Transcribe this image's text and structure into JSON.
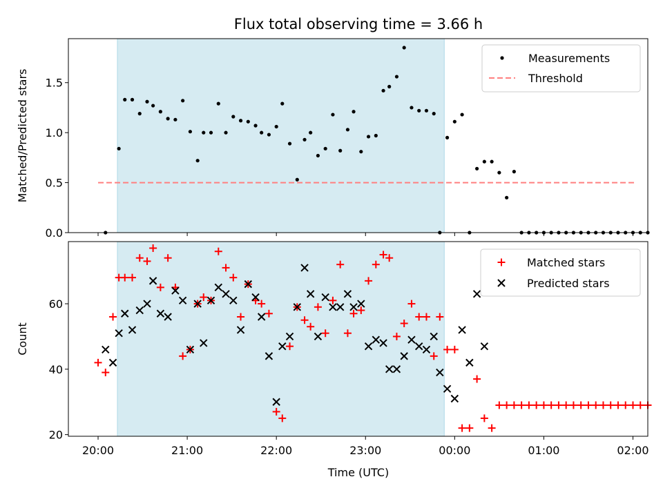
{
  "figure": {
    "title": "Flux total observing time = 3.66 h",
    "xlabel": "Time (UTC)"
  },
  "colors": {
    "measurements": "#000000",
    "threshold": "#ff7f7f",
    "matched": "#ff0000",
    "predicted": "#000000",
    "observing_window": "#add8e6"
  },
  "chart_data": [
    {
      "type": "scatter",
      "ylabel": "Matched/Predicted stars",
      "ylim": [
        0,
        1.94
      ],
      "yticks": [
        "0.0",
        "0.5",
        "1.0",
        "1.5"
      ],
      "yticks_values": [
        0,
        0.5,
        1.0,
        1.5
      ],
      "x_unit": "minutes since 00:00 UTC (negative = previous day)",
      "xlim": [
        -260,
        130
      ],
      "xticks": [
        "20:00",
        "21:00",
        "22:00",
        "23:00",
        "00:00",
        "01:00",
        "02:00"
      ],
      "xticks_values": [
        -240,
        -180,
        -120,
        -60,
        0,
        60,
        120
      ],
      "shaded_region": [
        -227,
        -7
      ],
      "legend": {
        "position": "top-right",
        "entries": [
          "Measurements",
          "Threshold"
        ]
      },
      "threshold": {
        "name": "Threshold",
        "y": 0.5,
        "x": [
          -240,
          122
        ]
      },
      "series": [
        {
          "name": "Measurements",
          "points": [
            [
              -235,
              0.0
            ],
            [
              -226,
              0.84
            ],
            [
              -222,
              1.33
            ],
            [
              -217,
              1.33
            ],
            [
              -212,
              1.19
            ],
            [
              -207,
              1.31
            ],
            [
              -203,
              1.27
            ],
            [
              -198,
              1.21
            ],
            [
              -193,
              1.14
            ],
            [
              -188,
              1.13
            ],
            [
              -183,
              1.32
            ],
            [
              -178,
              1.01
            ],
            [
              -173,
              0.72
            ],
            [
              -169,
              1.0
            ],
            [
              -164,
              1.0
            ],
            [
              -159,
              1.29
            ],
            [
              -154,
              1.0
            ],
            [
              -149,
              1.16
            ],
            [
              -144,
              1.12
            ],
            [
              -139,
              1.11
            ],
            [
              -134,
              1.07
            ],
            [
              -130,
              1.0
            ],
            [
              -125,
              0.98
            ],
            [
              -120,
              1.06
            ],
            [
              -116,
              1.29
            ],
            [
              -111,
              0.89
            ],
            [
              -106,
              0.53
            ],
            [
              -101,
              0.93
            ],
            [
              -97,
              1.0
            ],
            [
              -92,
              0.77
            ],
            [
              -87,
              0.84
            ],
            [
              -82,
              1.18
            ],
            [
              -77,
              0.82
            ],
            [
              -72,
              1.03
            ],
            [
              -68,
              1.21
            ],
            [
              -63,
              0.81
            ],
            [
              -58,
              0.96
            ],
            [
              -53,
              0.97
            ],
            [
              -48,
              1.42
            ],
            [
              -44,
              1.46
            ],
            [
              -39,
              1.56
            ],
            [
              -34,
              1.85
            ],
            [
              -29,
              1.25
            ],
            [
              -24,
              1.22
            ],
            [
              -19,
              1.22
            ],
            [
              -14,
              1.19
            ],
            [
              -10,
              0.0
            ],
            [
              -5,
              0.95
            ],
            [
              0,
              1.11
            ],
            [
              5,
              1.18
            ],
            [
              10,
              0.0
            ],
            [
              15,
              0.64
            ],
            [
              20,
              0.71
            ],
            [
              25,
              0.71
            ],
            [
              30,
              0.6
            ],
            [
              35,
              0.35
            ],
            [
              40,
              0.61
            ],
            [
              45,
              0.0
            ],
            [
              50,
              0.0
            ],
            [
              55,
              0.0
            ],
            [
              60,
              0.0
            ],
            [
              65,
              0.0
            ],
            [
              70,
              0.0
            ],
            [
              75,
              0.0
            ],
            [
              80,
              0.0
            ],
            [
              85,
              0.0
            ],
            [
              90,
              0.0
            ],
            [
              95,
              0.0
            ],
            [
              100,
              0.0
            ],
            [
              105,
              0.0
            ],
            [
              110,
              0.0
            ],
            [
              115,
              0.0
            ],
            [
              120,
              0.0
            ],
            [
              125,
              0.0
            ],
            [
              130,
              0.0
            ]
          ]
        }
      ]
    },
    {
      "type": "scatter",
      "ylabel": "Count",
      "ylim": [
        19.5,
        79
      ],
      "yticks": [
        "20",
        "40",
        "60"
      ],
      "yticks_values": [
        20,
        40,
        60
      ],
      "x_unit": "minutes since 00:00 UTC (negative = previous day)",
      "xlim": [
        -260,
        130
      ],
      "xticks": [
        "20:00",
        "21:00",
        "22:00",
        "23:00",
        "00:00",
        "01:00",
        "02:00"
      ],
      "xticks_values": [
        -240,
        -180,
        -120,
        -60,
        0,
        60,
        120
      ],
      "shaded_region": [
        -227,
        -7
      ],
      "legend": {
        "position": "top-right",
        "entries": [
          "Matched stars",
          "Predicted stars"
        ]
      },
      "series": [
        {
          "name": "Matched stars",
          "marker": "plus",
          "points": [
            [
              -240,
              42
            ],
            [
              -235,
              39
            ],
            [
              -230,
              56
            ],
            [
              -226,
              68
            ],
            [
              -222,
              68
            ],
            [
              -217,
              68
            ],
            [
              -212,
              74
            ],
            [
              -207,
              73
            ],
            [
              -203,
              77
            ],
            [
              -198,
              65
            ],
            [
              -193,
              74
            ],
            [
              -188,
              65
            ],
            [
              -183,
              44
            ],
            [
              -178,
              46
            ],
            [
              -173,
              60
            ],
            [
              -169,
              62
            ],
            [
              -164,
              61
            ],
            [
              -159,
              76
            ],
            [
              -154,
              71
            ],
            [
              -149,
              68
            ],
            [
              -144,
              56
            ],
            [
              -139,
              66
            ],
            [
              -134,
              61
            ],
            [
              -130,
              60
            ],
            [
              -125,
              57
            ],
            [
              -120,
              27
            ],
            [
              -116,
              25
            ],
            [
              -111,
              47
            ],
            [
              -106,
              59
            ],
            [
              -101,
              55
            ],
            [
              -97,
              53
            ],
            [
              -92,
              59
            ],
            [
              -87,
              51
            ],
            [
              -82,
              61
            ],
            [
              -77,
              72
            ],
            [
              -72,
              51
            ],
            [
              -68,
              57
            ],
            [
              -63,
              58
            ],
            [
              -58,
              67
            ],
            [
              -53,
              72
            ],
            [
              -48,
              75
            ],
            [
              -44,
              74
            ],
            [
              -39,
              50
            ],
            [
              -34,
              54
            ],
            [
              -29,
              60
            ],
            [
              -24,
              56
            ],
            [
              -19,
              56
            ],
            [
              -14,
              44
            ],
            [
              -10,
              56
            ],
            [
              -5,
              46
            ],
            [
              0,
              46
            ],
            [
              5,
              22
            ],
            [
              10,
              22
            ],
            [
              15,
              37
            ],
            [
              20,
              25
            ],
            [
              25,
              22
            ],
            [
              30,
              29
            ],
            [
              35,
              29
            ],
            [
              40,
              29
            ],
            [
              45,
              29
            ],
            [
              50,
              29
            ],
            [
              55,
              29
            ],
            [
              60,
              29
            ],
            [
              65,
              29
            ],
            [
              70,
              29
            ],
            [
              75,
              29
            ],
            [
              80,
              29
            ],
            [
              85,
              29
            ],
            [
              90,
              29
            ],
            [
              95,
              29
            ],
            [
              100,
              29
            ],
            [
              105,
              29
            ],
            [
              110,
              29
            ],
            [
              115,
              29
            ],
            [
              120,
              29
            ],
            [
              125,
              29
            ],
            [
              130,
              29
            ]
          ]
        },
        {
          "name": "Predicted stars",
          "marker": "x",
          "points": [
            [
              -235,
              46
            ],
            [
              -230,
              42
            ],
            [
              -226,
              51
            ],
            [
              -222,
              57
            ],
            [
              -217,
              52
            ],
            [
              -212,
              58
            ],
            [
              -207,
              60
            ],
            [
              -203,
              67
            ],
            [
              -198,
              57
            ],
            [
              -193,
              56
            ],
            [
              -188,
              64
            ],
            [
              -183,
              61
            ],
            [
              -178,
              46
            ],
            [
              -173,
              60
            ],
            [
              -169,
              48
            ],
            [
              -164,
              61
            ],
            [
              -159,
              65
            ],
            [
              -154,
              63
            ],
            [
              -149,
              61
            ],
            [
              -144,
              52
            ],
            [
              -139,
              66
            ],
            [
              -134,
              62
            ],
            [
              -130,
              56
            ],
            [
              -125,
              44
            ],
            [
              -120,
              30
            ],
            [
              -116,
              47
            ],
            [
              -111,
              50
            ],
            [
              -106,
              59
            ],
            [
              -101,
              71
            ],
            [
              -97,
              63
            ],
            [
              -92,
              50
            ],
            [
              -87,
              62
            ],
            [
              -82,
              59
            ],
            [
              -77,
              59
            ],
            [
              -72,
              63
            ],
            [
              -68,
              59
            ],
            [
              -63,
              60
            ],
            [
              -58,
              47
            ],
            [
              -53,
              49
            ],
            [
              -48,
              48
            ],
            [
              -44,
              40
            ],
            [
              -39,
              40
            ],
            [
              -34,
              44
            ],
            [
              -29,
              49
            ],
            [
              -24,
              47
            ],
            [
              -19,
              46
            ],
            [
              -14,
              50
            ],
            [
              -10,
              39
            ],
            [
              -5,
              34
            ],
            [
              0,
              31
            ],
            [
              5,
              52
            ],
            [
              10,
              42
            ],
            [
              15,
              63
            ],
            [
              20,
              47
            ]
          ]
        }
      ]
    }
  ]
}
